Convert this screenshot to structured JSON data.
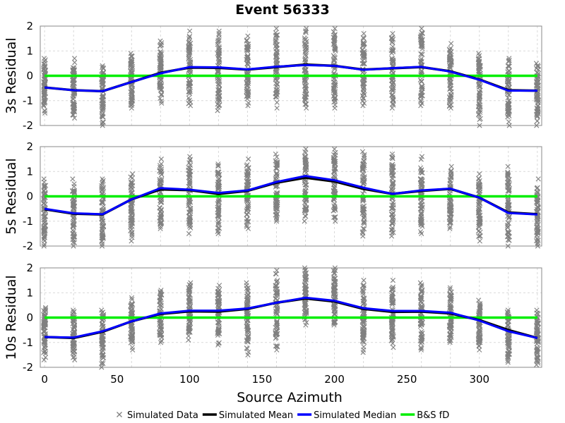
{
  "chart_data": {
    "type": "line",
    "title": "Event 56333",
    "xlabel": "Source Azimuth",
    "xlim": [
      -3,
      343
    ],
    "x_ticks": [
      0,
      50,
      100,
      150,
      200,
      250,
      300
    ],
    "x_gridlines": [
      0,
      20,
      40,
      60,
      80,
      100,
      120,
      140,
      160,
      180,
      200,
      220,
      240,
      260,
      280,
      300,
      320,
      340
    ],
    "ylim": [
      -2,
      2
    ],
    "y_ticks": [
      -2,
      -1,
      0,
      1,
      2
    ],
    "grid": true,
    "legend_position": "bottom-center",
    "colors": {
      "simulated_data": "#808080",
      "simulated_mean": "#000000",
      "simulated_median": "#0000ff",
      "bs_fd": "#00ee00",
      "grid": "#d8d8d8",
      "frame": "#888888"
    },
    "legend": [
      {
        "label": "Simulated Data",
        "marker": "x",
        "color": "#808080"
      },
      {
        "label": "Simulated Mean",
        "marker": "line",
        "color": "#000000"
      },
      {
        "label": "Simulated Median",
        "marker": "line",
        "color": "#0000ff"
      },
      {
        "label": "B&S fD",
        "marker": "line",
        "color": "#00ee00"
      }
    ],
    "x": [
      0,
      20,
      40,
      60,
      80,
      100,
      120,
      140,
      160,
      180,
      200,
      220,
      240,
      260,
      280,
      300,
      320,
      340
    ],
    "panels": [
      {
        "ylabel": "3s Residual",
        "mean": [
          -0.47,
          -0.58,
          -0.62,
          -0.25,
          0.12,
          0.33,
          0.32,
          0.25,
          0.35,
          0.45,
          0.4,
          0.25,
          0.3,
          0.35,
          0.18,
          -0.15,
          -0.58,
          -0.6
        ],
        "median": [
          -0.47,
          -0.58,
          -0.62,
          -0.25,
          0.1,
          0.35,
          0.34,
          0.26,
          0.37,
          0.43,
          0.4,
          0.24,
          0.31,
          0.36,
          0.17,
          -0.16,
          -0.6,
          -0.6
        ],
        "bs_fd": 0,
        "data_min": [
          -1.5,
          -1.7,
          -2.0,
          -1.3,
          -1.1,
          -1.2,
          -1.4,
          -1.2,
          -1.3,
          -1.3,
          -1.3,
          -1.2,
          -1.3,
          -1.2,
          -1.3,
          -2.0,
          -2.0,
          -2.0
        ],
        "data_max": [
          0.7,
          0.7,
          0.4,
          0.9,
          1.4,
          1.8,
          1.8,
          1.6,
          1.9,
          1.9,
          1.9,
          1.7,
          1.7,
          1.9,
          1.3,
          0.9,
          0.7,
          0.5
        ]
      },
      {
        "ylabel": "5s Residual",
        "mean": [
          -0.52,
          -0.7,
          -0.73,
          -0.12,
          0.28,
          0.25,
          0.1,
          0.22,
          0.55,
          0.75,
          0.6,
          0.3,
          0.1,
          0.22,
          0.3,
          -0.05,
          -0.65,
          -0.72
        ],
        "median": [
          -0.5,
          -0.68,
          -0.72,
          -0.12,
          0.33,
          0.27,
          0.14,
          0.24,
          0.58,
          0.82,
          0.65,
          0.35,
          0.1,
          0.24,
          0.31,
          -0.05,
          -0.67,
          -0.73
        ],
        "bs_fd": 0,
        "data_min": [
          -2.0,
          -2.0,
          -2.0,
          -1.8,
          -1.3,
          -1.5,
          -1.5,
          -1.3,
          -1.0,
          -1.0,
          -1.0,
          -1.6,
          -1.6,
          -1.5,
          -1.3,
          -1.8,
          -2.0,
          -2.0
        ],
        "data_max": [
          0.7,
          0.7,
          0.7,
          0.9,
          1.5,
          1.6,
          1.3,
          1.5,
          1.7,
          1.9,
          1.9,
          1.8,
          1.7,
          1.6,
          1.2,
          0.9,
          1.2,
          0.7
        ]
      },
      {
        "ylabel": "10s Residual",
        "mean": [
          -0.78,
          -0.82,
          -0.57,
          -0.15,
          0.15,
          0.25,
          0.24,
          0.35,
          0.6,
          0.77,
          0.65,
          0.35,
          0.23,
          0.24,
          0.17,
          -0.1,
          -0.5,
          -0.82
        ],
        "median": [
          -0.78,
          -0.8,
          -0.55,
          -0.15,
          0.17,
          0.28,
          0.28,
          0.37,
          0.6,
          0.8,
          0.68,
          0.38,
          0.27,
          0.27,
          0.2,
          -0.12,
          -0.55,
          -0.82
        ],
        "bs_fd": 0,
        "data_min": [
          -1.7,
          -1.7,
          -2.0,
          -1.3,
          -1.0,
          -0.9,
          -1.1,
          -1.5,
          -1.3,
          -0.3,
          -0.3,
          -1.4,
          -1.2,
          -1.3,
          -1.0,
          -1.3,
          -1.8,
          -1.9
        ],
        "data_max": [
          0.4,
          0.3,
          0.3,
          0.8,
          1.1,
          1.4,
          1.3,
          1.4,
          1.9,
          2.0,
          2.0,
          1.5,
          1.5,
          1.4,
          1.2,
          0.7,
          0.3,
          0.3
        ]
      }
    ]
  }
}
